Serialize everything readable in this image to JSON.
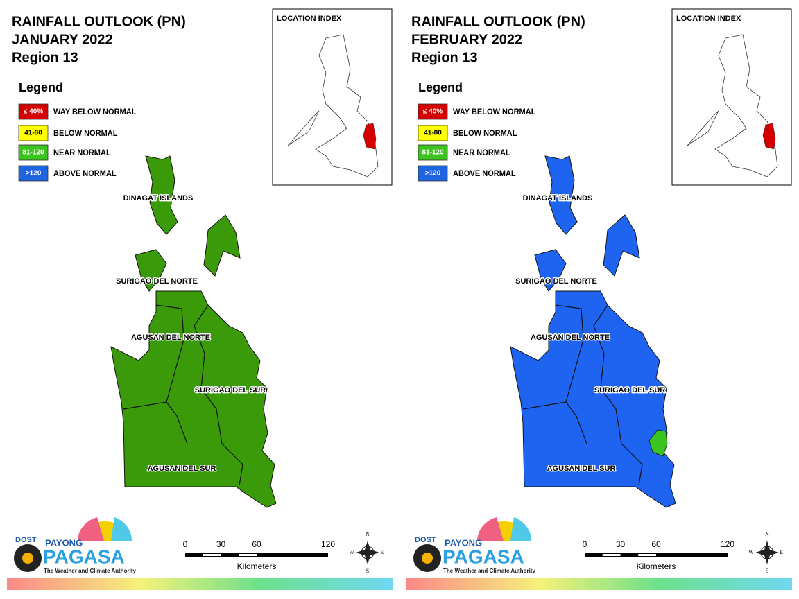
{
  "panels": [
    {
      "title": "RAINFALL OUTLOOK (PN)",
      "month": "JANUARY 2022",
      "region": "Region 13",
      "map_fill": "#3a9a0a",
      "patch": false,
      "legend": {
        "title": "Legend",
        "items": [
          {
            "range": "≤ 40%",
            "label": "WAY BELOW NORMAL",
            "color": "#d40000"
          },
          {
            "range": "41-80",
            "label": "BELOW NORMAL",
            "color": "#ffff00"
          },
          {
            "range": "81-120",
            "label": "NEAR NORMAL",
            "color": "#3cc41e"
          },
          {
            "range": ">120",
            "label": "ABOVE NORMAL",
            "color": "#1f64e0"
          }
        ]
      },
      "location_index": "LOCATION INDEX",
      "provinces": [
        "DINAGAT ISLANDS",
        "SURIGAO DEL NORTE",
        "AGUSAN DEL NORTE",
        "SURIGAO DEL SUR",
        "AGUSAN DEL SUR"
      ],
      "scale": {
        "ticks": [
          0,
          30,
          60,
          120
        ],
        "unit": "Kilometers"
      },
      "compass": [
        "N",
        "E",
        "S",
        "W"
      ],
      "logo": {
        "agency": "DOST",
        "payong": "PAYONG",
        "pagasa": "PAGASA",
        "tagline": "The Weather and Climate Authority"
      }
    },
    {
      "title": "RAINFALL OUTLOOK (PN)",
      "month": "FEBRUARY 2022",
      "region": "Region 13",
      "map_fill": "#1e64f0",
      "patch": true,
      "legend": {
        "title": "Legend",
        "items": [
          {
            "range": "≤ 40%",
            "label": "WAY BELOW NORMAL",
            "color": "#d40000"
          },
          {
            "range": "41-80",
            "label": "BELOW NORMAL",
            "color": "#ffff00"
          },
          {
            "range": "81-120",
            "label": "NEAR NORMAL",
            "color": "#3cc41e"
          },
          {
            "range": ">120",
            "label": "ABOVE NORMAL",
            "color": "#1f64e0"
          }
        ]
      },
      "location_index": "LOCATION INDEX",
      "provinces": [
        "DINAGAT ISLANDS",
        "SURIGAO DEL NORTE",
        "AGUSAN DEL NORTE",
        "SURIGAO DEL SUR",
        "AGUSAN DEL SUR"
      ],
      "scale": {
        "ticks": [
          0,
          30,
          60,
          120
        ],
        "unit": "Kilometers"
      },
      "compass": [
        "N",
        "E",
        "S",
        "W"
      ],
      "logo": {
        "agency": "DOST",
        "payong": "PAYONG",
        "pagasa": "PAGASA",
        "tagline": "The Weather and Climate Authority"
      }
    }
  ]
}
